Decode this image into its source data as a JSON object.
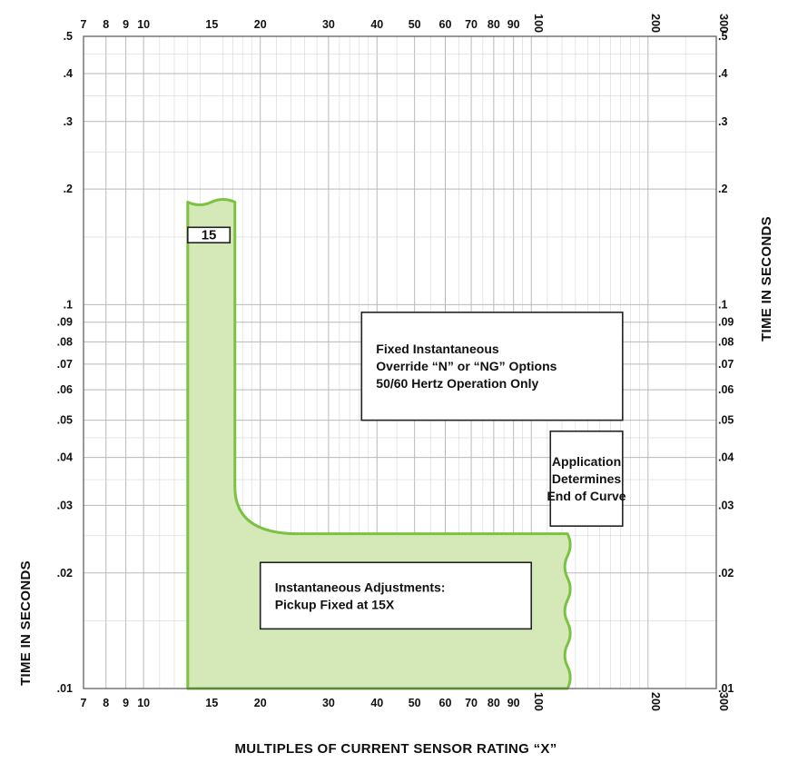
{
  "chart_data": {
    "type": "area",
    "x_scale": "log",
    "y_scale": "log",
    "xlim": [
      7,
      300
    ],
    "ylim": [
      0.01,
      0.5
    ],
    "grid": true,
    "xlabel": "MULTIPLES OF CURRENT SENSOR RATING “X”",
    "ylabel": "TIME IN SECONDS",
    "y2label": "TIME IN SECONDS",
    "x_ticks": [
      7,
      8,
      9,
      10,
      15,
      20,
      30,
      40,
      50,
      60,
      70,
      80,
      90,
      100,
      200,
      300
    ],
    "x_tick_labels": [
      "7",
      "8",
      "9",
      "10",
      "15",
      "20",
      "30",
      "40",
      "50",
      "60",
      "70",
      "80",
      "90",
      "100",
      "200",
      "300"
    ],
    "y_ticks": [
      0.01,
      0.02,
      0.03,
      0.04,
      0.05,
      0.06,
      0.07,
      0.08,
      0.09,
      0.1,
      0.2,
      0.3,
      0.4,
      0.5
    ],
    "y_tick_labels": [
      ".01",
      ".02",
      ".03",
      ".04",
      ".05",
      ".06",
      ".07",
      ".08",
      ".09",
      ".1",
      ".2",
      ".3",
      ".4",
      ".5"
    ],
    "band": {
      "fill_color": "#d5e8b8",
      "stroke_color": "#7cc242",
      "left_x": 13.0,
      "right_x_upper": 17.2,
      "top_y": 0.185,
      "knee_x": 25,
      "knee_y": 0.0335,
      "lower_y_top": 0.0253,
      "end_x": 124,
      "bottom_y": 0.01
    },
    "annotations": [
      {
        "id": "pickup",
        "text": "15",
        "x_left": 13.0,
        "x_right": 16.7,
        "y_top": 0.159,
        "y_bottom": 0.145
      },
      {
        "id": "override",
        "lines": [
          "Fixed Instantaneous",
          "Override “N” or “NG” Options",
          "50/60 Hertz Operation Only"
        ],
        "x_left": 36.5,
        "x_right": 172,
        "y_top": 0.0955,
        "y_bottom": 0.05
      },
      {
        "id": "end-of-curve",
        "lines": [
          "Application",
          "Determines",
          "End of Curve"
        ],
        "x_left": 112,
        "x_right": 172,
        "y_top": 0.0468,
        "y_bottom": 0.0265
      },
      {
        "id": "adjustments",
        "lines": [
          "Instantaneous Adjustments:",
          "Pickup Fixed at 15X"
        ],
        "x_left": 20.0,
        "x_right": 100,
        "y_top": 0.0213,
        "y_bottom": 0.0143
      }
    ]
  }
}
